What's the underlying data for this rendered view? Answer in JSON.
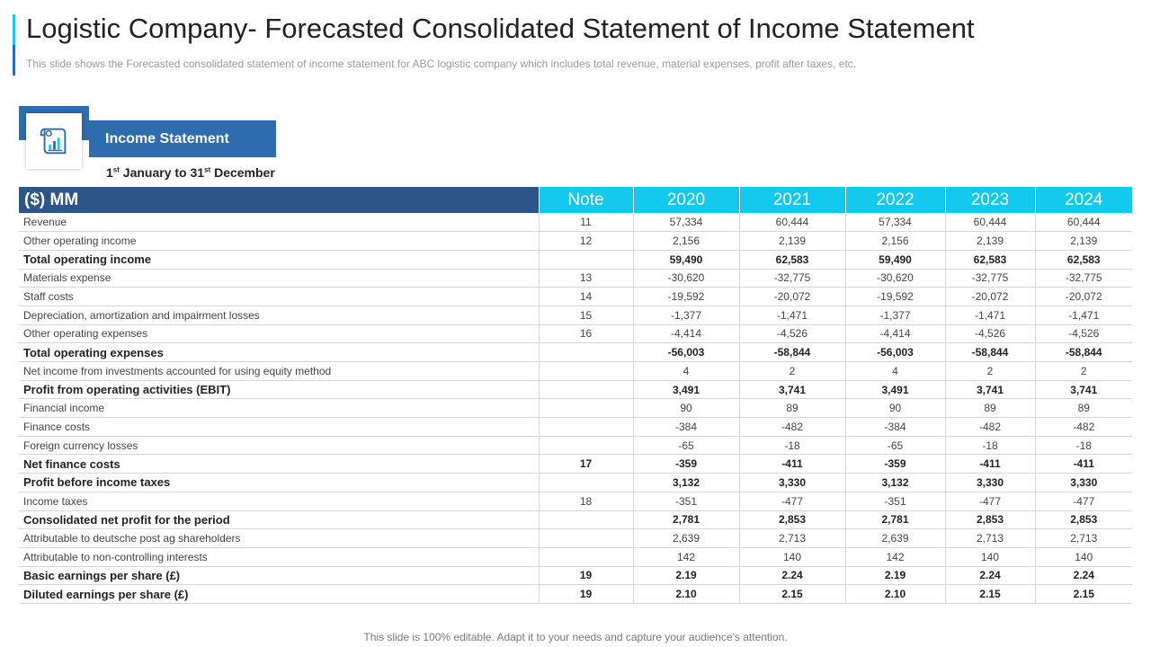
{
  "title": "Logistic Company- Forecasted Consolidated Statement of Income Statement",
  "subtitle": "This slide shows the Forecasted consolidated statement of income statement for ABC logistic company which includes total revenue,  material expenses, profit after taxes, etc.",
  "badge": {
    "label": "Income Statement",
    "icon": "financial-report-icon"
  },
  "period": {
    "day1": "1",
    "sup1": "st",
    "mid": " January to 31",
    "sup2": "st",
    "end": " December"
  },
  "table": {
    "headers": [
      "($) MM",
      "Note",
      "2020",
      "2021",
      "2022",
      "2023",
      "2024"
    ],
    "rows": [
      {
        "label": "Revenue",
        "note": "11",
        "values": [
          "57,334",
          "60,444",
          "57,334",
          "60,444",
          "60,444"
        ],
        "bold": false
      },
      {
        "label": "Other operating income",
        "note": "12",
        "values": [
          "2,156",
          "2,139",
          "2,156",
          "2,139",
          "2,139"
        ],
        "bold": false
      },
      {
        "label": "Total operating income",
        "note": "",
        "values": [
          "59,490",
          "62,583",
          "59,490",
          "62,583",
          "62,583"
        ],
        "bold": true
      },
      {
        "label": "Materials expense",
        "note": "13",
        "values": [
          "-30,620",
          "-32,775",
          "-30,620",
          "-32,775",
          "-32,775"
        ],
        "bold": false
      },
      {
        "label": "Staff costs",
        "note": "14",
        "values": [
          "-19,592",
          "-20,072",
          "-19,592",
          "-20,072",
          "-20,072"
        ],
        "bold": false
      },
      {
        "label": "Depreciation, amortization and impairment losses",
        "note": "15",
        "values": [
          "-1,377",
          "-1,471",
          "-1,377",
          "-1,471",
          "-1,471"
        ],
        "bold": false
      },
      {
        "label": "Other operating expenses",
        "note": "16",
        "values": [
          "-4,414",
          "-4,526",
          "-4,414",
          "-4,526",
          "-4,526"
        ],
        "bold": false
      },
      {
        "label": "Total operating expenses",
        "note": "",
        "values": [
          "-56,003",
          "-58,844",
          "-56,003",
          "-58,844",
          "-58,844"
        ],
        "bold": true
      },
      {
        "label": "Net income from investments accounted for using equity method",
        "note": "",
        "values": [
          "4",
          "2",
          "4",
          "2",
          "2"
        ],
        "bold": false
      },
      {
        "label": "Profit from operating activities (EBIT)",
        "note": "",
        "values": [
          "3,491",
          "3,741",
          "3,491",
          "3,741",
          "3,741"
        ],
        "bold": true
      },
      {
        "label": "Financial income",
        "note": "",
        "values": [
          "90",
          "89",
          "90",
          "89",
          "89"
        ],
        "bold": false
      },
      {
        "label": "Finance costs",
        "note": "",
        "values": [
          "-384",
          "-482",
          "-384",
          "-482",
          "-482"
        ],
        "bold": false
      },
      {
        "label": "Foreign currency losses",
        "note": "",
        "values": [
          "-65",
          "-18",
          "-65",
          "-18",
          "-18"
        ],
        "bold": false
      },
      {
        "label": "Net finance costs",
        "note": "17",
        "values": [
          "-359",
          "-411",
          "-359",
          "-411",
          "-411"
        ],
        "bold": true
      },
      {
        "label": "Profit before income taxes",
        "note": "",
        "values": [
          "3,132",
          "3,330",
          "3,132",
          "3,330",
          "3,330"
        ],
        "bold": true
      },
      {
        "label": "Income taxes",
        "note": "18",
        "values": [
          "-351",
          "-477",
          "-351",
          "-477",
          "-477"
        ],
        "bold": false
      },
      {
        "label": "Consolidated net profit for the period",
        "note": "",
        "values": [
          "2,781",
          "2,853",
          "2,781",
          "2,853",
          "2,853"
        ],
        "bold": true
      },
      {
        "label": "Attributable to deutsche post ag shareholders",
        "note": "",
        "values": [
          "2,639",
          "2,713",
          "2,639",
          "2,713",
          "2,713"
        ],
        "bold": false
      },
      {
        "label": "Attributable to non-controlling interests",
        "note": "",
        "values": [
          "142",
          "140",
          "142",
          "140",
          "140"
        ],
        "bold": false
      },
      {
        "label": "Basic earnings per share (£)",
        "note": "19",
        "values": [
          "2.19",
          "2.24",
          "2.19",
          "2.24",
          "2.24"
        ],
        "bold": true
      },
      {
        "label": "Diluted earnings per share (£)",
        "note": "19",
        "values": [
          "2.10",
          "2.15",
          "2.10",
          "2.15",
          "2.15"
        ],
        "bold": true
      }
    ]
  },
  "footer": "This slide is 100% editable. Adapt it to your needs and capture your audience's attention.",
  "colors": {
    "navy": "#2b5687",
    "blue": "#2f6cae",
    "cyan": "#12c8ec"
  }
}
